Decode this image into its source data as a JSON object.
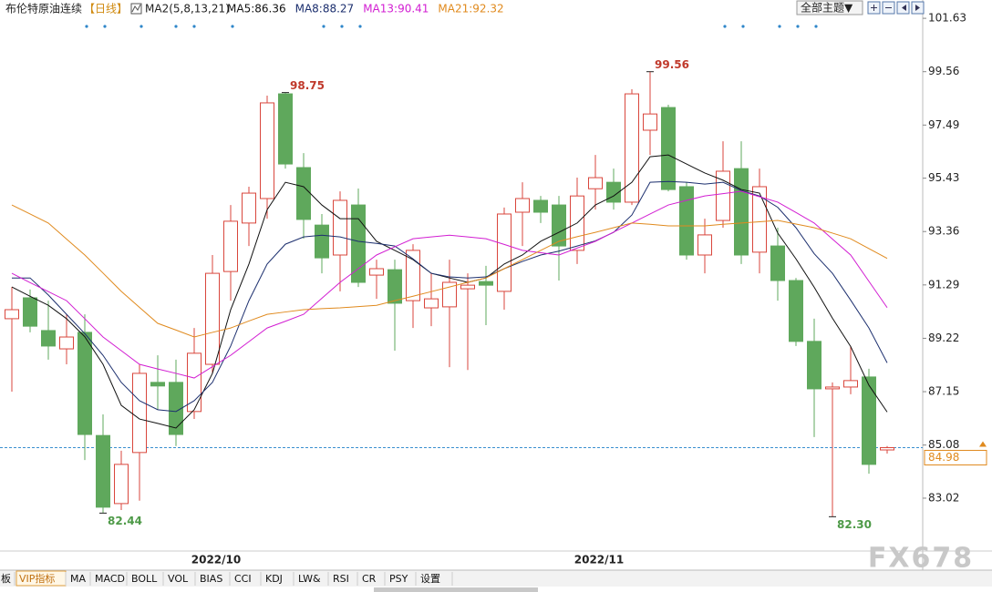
{
  "chart_data": {
    "type": "candlestick",
    "title": "布伦特原油连续",
    "period": "【日线】",
    "indicator": "MA2(5,8,13,21)",
    "categories": [
      null,
      null,
      null,
      null,
      null,
      null,
      null,
      null,
      null,
      null,
      null,
      "2022/10",
      null,
      null,
      null,
      null,
      null,
      null,
      null,
      null,
      null,
      null,
      null,
      null,
      null,
      null,
      null,
      null,
      null,
      null,
      null,
      null,
      "2022/11",
      null,
      null,
      null,
      null,
      null,
      null,
      null,
      null,
      null,
      null,
      null,
      null,
      null,
      null,
      null,
      null
    ],
    "open": [
      89.98,
      90.79,
      89.52,
      88.81,
      89.45,
      85.45,
      82.81,
      84.79,
      87.51,
      87.51,
      86.38,
      88.21,
      91.81,
      93.69,
      94.64,
      98.7,
      95.84,
      93.61,
      92.45,
      94.39,
      91.67,
      91.88,
      90.68,
      90.4,
      90.44,
      91.14,
      91.42,
      91.04,
      94.11,
      94.57,
      94.39,
      92.63,
      95.02,
      95.27,
      94.5,
      97.29,
      98.17,
      95.1,
      92.45,
      93.79,
      95.8,
      92.56,
      92.8,
      91.46,
      89.1,
      87.26,
      87.33,
      87.72,
      84.89
    ],
    "high": [
      91.21,
      91.11,
      90.68,
      90.15,
      90.15,
      86.27,
      84.86,
      88.21,
      88.56,
      88.39,
      89.62,
      92.45,
      94.39,
      95.1,
      98.63,
      98.75,
      96.4,
      94.04,
      94.92,
      95.03,
      92.27,
      92.27,
      92.87,
      91.74,
      92.27,
      91.74,
      92.03,
      94.29,
      95.27,
      94.74,
      94.74,
      95.45,
      96.33,
      95.8,
      98.88,
      99.56,
      98.28,
      95.27,
      93.86,
      96.86,
      96.86,
      95.8,
      93.51,
      91.56,
      89.98,
      87.51,
      88.92,
      88.04,
      85.04
    ],
    "low": [
      87.15,
      89.45,
      88.39,
      88.21,
      84.5,
      82.44,
      82.56,
      82.92,
      86.45,
      85.04,
      86.09,
      87.86,
      90.68,
      92.8,
      93.86,
      95.8,
      93.08,
      91.74,
      91.04,
      91.21,
      90.75,
      88.74,
      89.62,
      89.69,
      88.1,
      87.99,
      89.73,
      90.33,
      92.8,
      93.69,
      91.46,
      92.1,
      94.21,
      94.21,
      94.39,
      96.33,
      94.92,
      92.27,
      91.74,
      93.51,
      92.1,
      91.74,
      90.68,
      88.92,
      85.39,
      82.3,
      87.05,
      83.97,
      84.75
    ],
    "close": [
      90.33,
      89.69,
      88.92,
      89.27,
      85.49,
      82.67,
      84.33,
      87.86,
      87.37,
      85.49,
      88.64,
      91.74,
      93.76,
      94.85,
      98.35,
      95.98,
      93.83,
      92.34,
      94.57,
      91.39,
      91.92,
      90.58,
      92.63,
      90.75,
      91.39,
      91.28,
      91.28,
      94.04,
      94.64,
      94.11,
      92.8,
      94.74,
      95.45,
      94.5,
      98.7,
      97.92,
      94.99,
      92.45,
      93.23,
      95.7,
      92.45,
      95.1,
      91.46,
      89.1,
      87.26,
      87.33,
      87.58,
      84.33,
      84.98
    ],
    "up_color": "#d9463c",
    "down_color": "#5fa85c",
    "ma_series": [
      {
        "name": "MA5:86.36",
        "color": "#111111",
        "values": [
          91.21,
          90.85,
          90.5,
          89.98,
          89.28,
          88.21,
          86.62,
          86.09,
          85.92,
          85.74,
          86.45,
          87.86,
          90.33,
          92.1,
          94.21,
          95.27,
          95.1,
          94.39,
          93.86,
          93.86,
          92.98,
          92.63,
          92.27,
          91.74,
          91.56,
          91.39,
          91.56,
          92.1,
          92.45,
          92.98,
          93.33,
          93.69,
          94.39,
          94.74,
          95.27,
          96.26,
          96.33,
          95.98,
          95.63,
          95.35,
          94.99,
          94.85,
          93.3,
          92.3,
          91.2,
          90.0,
          88.9,
          87.4,
          86.36
        ]
      },
      {
        "name": "MA8:88.27",
        "color": "#1c2f6e",
        "values": [
          91.56,
          91.56,
          90.9,
          90.15,
          89.4,
          88.56,
          87.51,
          86.8,
          86.45,
          86.38,
          86.8,
          87.51,
          88.92,
          90.68,
          92.1,
          92.87,
          93.15,
          93.22,
          93.15,
          92.98,
          92.9,
          92.8,
          92.3,
          91.74,
          91.6,
          91.56,
          91.6,
          91.92,
          92.2,
          92.45,
          92.6,
          92.8,
          93.0,
          93.33,
          94.0,
          95.27,
          95.3,
          95.27,
          95.2,
          95.27,
          94.95,
          94.74,
          94.3,
          93.51,
          92.5,
          91.74,
          90.7,
          89.62,
          88.27
        ]
      },
      {
        "name": "MA13:90.41",
        "color": "#d21ed2",
        "values": [
          91.74,
          91.38,
          91.03,
          90.68,
          89.98,
          89.27,
          88.74,
          88.21,
          88.03,
          87.86,
          87.68,
          88.12,
          88.56,
          89.09,
          89.62,
          89.88,
          90.15,
          90.77,
          91.39,
          91.92,
          92.45,
          92.77,
          93.08,
          93.15,
          93.22,
          93.15,
          93.08,
          92.86,
          92.63,
          92.54,
          92.45,
          92.72,
          92.98,
          93.34,
          93.69,
          94.04,
          94.39,
          94.57,
          94.74,
          94.83,
          94.92,
          94.71,
          94.5,
          94.1,
          93.69,
          93.07,
          92.45,
          91.43,
          90.41
        ]
      },
      {
        "name": "MA21:92.32",
        "color": "#e08a1e",
        "values": [
          94.39,
          94.04,
          93.69,
          93.07,
          92.45,
          91.75,
          91.04,
          90.42,
          89.8,
          89.54,
          89.27,
          89.45,
          89.62,
          89.89,
          90.15,
          90.24,
          90.33,
          90.37,
          90.4,
          90.45,
          90.5,
          90.68,
          90.85,
          91.03,
          91.21,
          91.39,
          91.56,
          91.92,
          92.27,
          92.63,
          92.98,
          93.16,
          93.33,
          93.51,
          93.69,
          93.64,
          93.58,
          93.58,
          93.58,
          93.64,
          93.69,
          93.74,
          93.79,
          93.65,
          93.51,
          93.3,
          93.08,
          92.7,
          92.32
        ]
      }
    ],
    "annotations": [
      {
        "value": 98.75,
        "label": "98.75"
      },
      {
        "value": 99.56,
        "label": "99.56"
      },
      {
        "value": 82.44,
        "label": "82.44"
      },
      {
        "value": 82.3,
        "label": "82.30"
      }
    ],
    "last_price": 84.98,
    "last_price_color": "#e08a1e",
    "ylim": [
      80.97,
      102.34
    ],
    "yticks": [
      101.63,
      99.56,
      97.49,
      95.43,
      93.36,
      91.29,
      89.22,
      87.15,
      85.08,
      83.02
    ],
    "grid": false
  },
  "toolbar": {
    "theme_button": "全部主题▼"
  },
  "tabs": [
    "板",
    "VIP指标",
    "MA",
    "MACD",
    "BOLL",
    "VOL",
    "BIAS",
    "CCI",
    "KDJ",
    "LW&",
    "RSI",
    "CR",
    "PSY",
    "设置"
  ],
  "watermark": "FX678"
}
